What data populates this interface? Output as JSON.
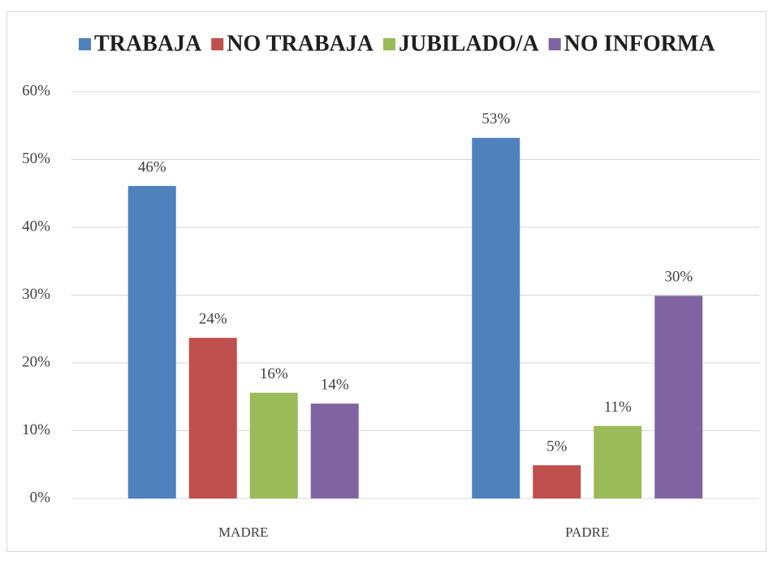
{
  "chart_data": {
    "type": "bar",
    "categories": [
      "MADRE",
      "PADRE"
    ],
    "series": [
      {
        "name": "TRABAJA",
        "color": "#4f81bd",
        "values": [
          46.1,
          53.2
        ],
        "value_labels": [
          "46%",
          "53%"
        ]
      },
      {
        "name": "NO TRABAJA",
        "color": "#c0504d",
        "values": [
          23.7,
          4.9
        ],
        "value_labels": [
          "24%",
          "5%"
        ]
      },
      {
        "name": "JUBILADO/A",
        "color": "#9bbb59",
        "values": [
          15.6,
          10.7
        ],
        "value_labels": [
          "16%",
          "11%"
        ]
      },
      {
        "name": "NO INFORMA",
        "color": "#8064a2",
        "values": [
          14.0,
          29.9
        ],
        "value_labels": [
          "14%",
          "30%"
        ]
      }
    ],
    "ylim": [
      0,
      60
    ],
    "yticks": [
      {
        "value": 0,
        "label": "0%"
      },
      {
        "value": 10,
        "label": "10%"
      },
      {
        "value": 20,
        "label": "20%"
      },
      {
        "value": 30,
        "label": "30%"
      },
      {
        "value": 40,
        "label": "40%"
      },
      {
        "value": 50,
        "label": "50%"
      },
      {
        "value": 60,
        "label": "60%"
      }
    ],
    "grid": true,
    "legend": "top"
  }
}
